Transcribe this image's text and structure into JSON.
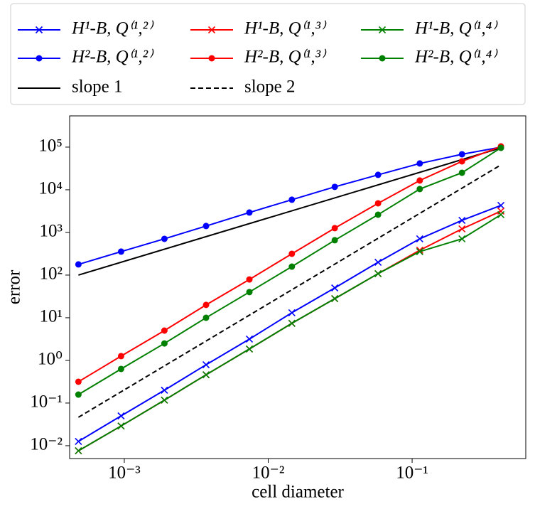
{
  "chart_data": {
    "type": "line",
    "xlabel": "cell diameter",
    "ylabel": "error",
    "xscale": "log",
    "yscale": "log",
    "xlim": [
      0.000417,
      0.616
    ],
    "ylim": [
      0.005,
      540000
    ],
    "xticks": [
      {
        "value": 0.001,
        "label": "10⁻³"
      },
      {
        "value": 0.01,
        "label": "10⁻²"
      },
      {
        "value": 0.1,
        "label": "10⁻¹"
      }
    ],
    "yticks": [
      {
        "value": 0.01,
        "label": "10⁻²"
      },
      {
        "value": 0.1,
        "label": "10⁻¹"
      },
      {
        "value": 1,
        "label": "10⁰"
      },
      {
        "value": 10,
        "label": "10¹"
      },
      {
        "value": 100,
        "label": "10²"
      },
      {
        "value": 1000,
        "label": "10³"
      },
      {
        "value": 10000,
        "label": "10⁴"
      },
      {
        "value": 100000,
        "label": "10⁵"
      }
    ],
    "x": [
      0.00048,
      0.00095,
      0.0019,
      0.0037,
      0.0074,
      0.0146,
      0.029,
      0.058,
      0.113,
      0.222,
      0.414
    ],
    "series": [
      {
        "name": "H¹-B, Q⁽¹,²⁾",
        "color": "#0000ff",
        "marker": "x",
        "values": [
          0.0126,
          0.05,
          0.2,
          0.79,
          3.16,
          13.1,
          50,
          200,
          708,
          1920,
          4300
        ]
      },
      {
        "name": "H²-B, Q⁽¹,²⁾",
        "color": "#0000ff",
        "marker": "o",
        "values": [
          178,
          355,
          708,
          1413,
          2930,
          5850,
          11700,
          22400,
          41400,
          68000,
          100000
        ]
      },
      {
        "name": "slope 1",
        "color": "#000000",
        "linestyle": "solid",
        "x": [
          0.00048,
          0.414
        ],
        "values": [
          100,
          96000
        ]
      },
      {
        "name": "H¹-B, Q⁽¹,³⁾",
        "color": "#ff0000",
        "marker": "x",
        "values": [
          0.0076,
          0.029,
          0.117,
          0.46,
          1.85,
          7.4,
          28,
          108,
          383,
          1210,
          3160
        ]
      },
      {
        "name": "H²-B, Q⁽¹,³⁾",
        "color": "#ff0000",
        "marker": "o",
        "values": [
          0.316,
          1.26,
          5.0,
          20,
          79,
          316,
          1260,
          4820,
          16500,
          46400,
          104000
        ]
      },
      {
        "name": "slope 2",
        "color": "#000000",
        "linestyle": "dashed",
        "x": [
          0.00048,
          0.414
        ],
        "values": [
          0.0464,
          38300
        ]
      },
      {
        "name": "H¹-B, Q⁽¹,⁴⁾",
        "color": "#008000",
        "marker": "x",
        "values": [
          0.0076,
          0.029,
          0.117,
          0.46,
          1.85,
          7.4,
          28,
          108,
          355,
          708,
          2610
        ]
      },
      {
        "name": "H²-B, Q⁽¹,⁴⁾",
        "color": "#008000",
        "marker": "o",
        "values": [
          0.158,
          0.63,
          2.5,
          10,
          40,
          158,
          656,
          2610,
          10400,
          25100,
          96200
        ]
      }
    ]
  }
}
